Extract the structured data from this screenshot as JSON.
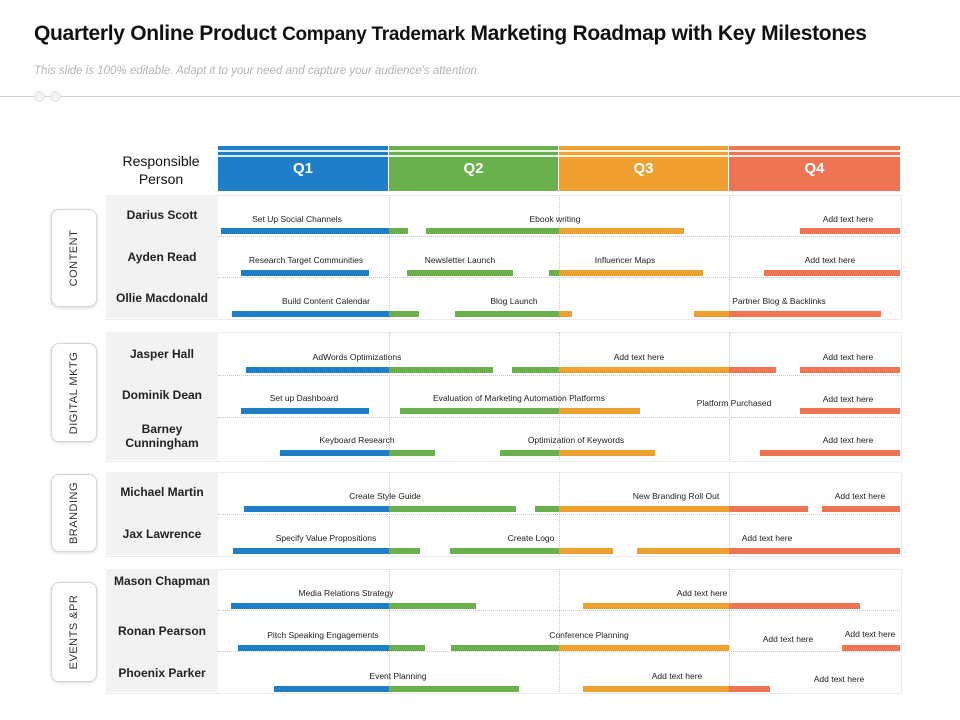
{
  "title_part1": "Quarterly Online Product",
  "title_part2": "Company Trademark",
  "title_part3": "Marketing Roadmap with Key Milestones",
  "subtitle": "This slide is 100% editable. Adapt it to your need and capture your audience's attention.",
  "responsible_person_label": "Responsible Person",
  "colors": {
    "q1": "#1e7fc8",
    "q2": "#6ab04c",
    "q3": "#f0a030",
    "q4": "#ee7454"
  },
  "quarters": [
    "Q1",
    "Q2",
    "Q3",
    "Q4"
  ],
  "categories": [
    "CONTENT",
    "DIGITAL MKTG",
    "BRANDING",
    "EVENTS &PR"
  ],
  "people": [
    "Darius Scott",
    "Ayden Read",
    "Ollie Macdonald",
    "Jasper Hall",
    "Dominik Dean",
    "Barney Cunningham",
    "Michael Martin",
    "Jax Lawrence",
    "Mason Chapman",
    "Ronan Pearson",
    "Phoenix Parker"
  ],
  "tasks": [
    "Set Up Social Channels",
    "Ebook writing",
    "Add text here",
    "Research Target Communities",
    "Newsletter Launch",
    "Influencer Maps",
    "Add text here",
    "Build Content Calendar",
    "Blog Launch",
    "Partner Blog & Backlinks",
    "AdWords Optimizations",
    "Add text here",
    "Add text here",
    "Set up Dashboard",
    "Evaluation of Marketing Automation Platforms",
    "Platform Purchased",
    "Add text here",
    "Keyboard Research",
    "Optimization of Keywords",
    "Add text here",
    "Create Style Guide",
    "New Branding Roll Out",
    "Add text here",
    "Specify Value Propositions",
    "Create Logo",
    "Add text here",
    "Media Relations Strategy",
    "Add text here",
    "Pitch Speaking Engagements",
    "Conference Planning",
    "Add text here",
    "Add text here",
    "Event Planning",
    "Add text here",
    "Add text here"
  ]
}
